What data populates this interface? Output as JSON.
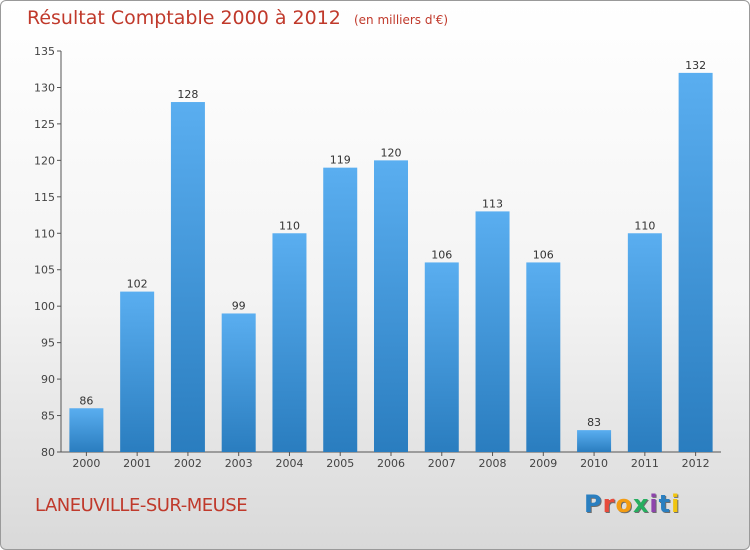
{
  "header": {
    "title": "Résultat Comptable 2000 à 2012",
    "unit": "(en milliers d'€)"
  },
  "footer": {
    "commune": "LANEUVILLE-SUR-MEUSE",
    "logo": [
      "P",
      "r",
      "o",
      "x",
      "i",
      "t",
      "i"
    ],
    "logo_colors": [
      "#2a7fc0",
      "#e74c3c",
      "#f39c12",
      "#27ae60",
      "#8e44ad",
      "#2a7fc0",
      "#f1c40f"
    ]
  },
  "colors": {
    "bar_top": "#5aaef0",
    "bar_bottom": "#2a7dbf",
    "title": "#c0392b"
  },
  "chart_data": {
    "type": "bar",
    "title": "Résultat Comptable 2000 à 2012",
    "xlabel": "",
    "ylabel": "",
    "categories": [
      "2000",
      "2001",
      "2002",
      "2003",
      "2004",
      "2005",
      "2006",
      "2007",
      "2008",
      "2009",
      "2010",
      "2011",
      "2012"
    ],
    "values": [
      86,
      102,
      128,
      99,
      110,
      119,
      120,
      106,
      113,
      106,
      83,
      110,
      132
    ],
    "ylim": [
      80,
      135
    ],
    "yticks": [
      80,
      85,
      90,
      95,
      100,
      105,
      110,
      115,
      120,
      125,
      130,
      135
    ],
    "grid": false,
    "legend": "none"
  }
}
